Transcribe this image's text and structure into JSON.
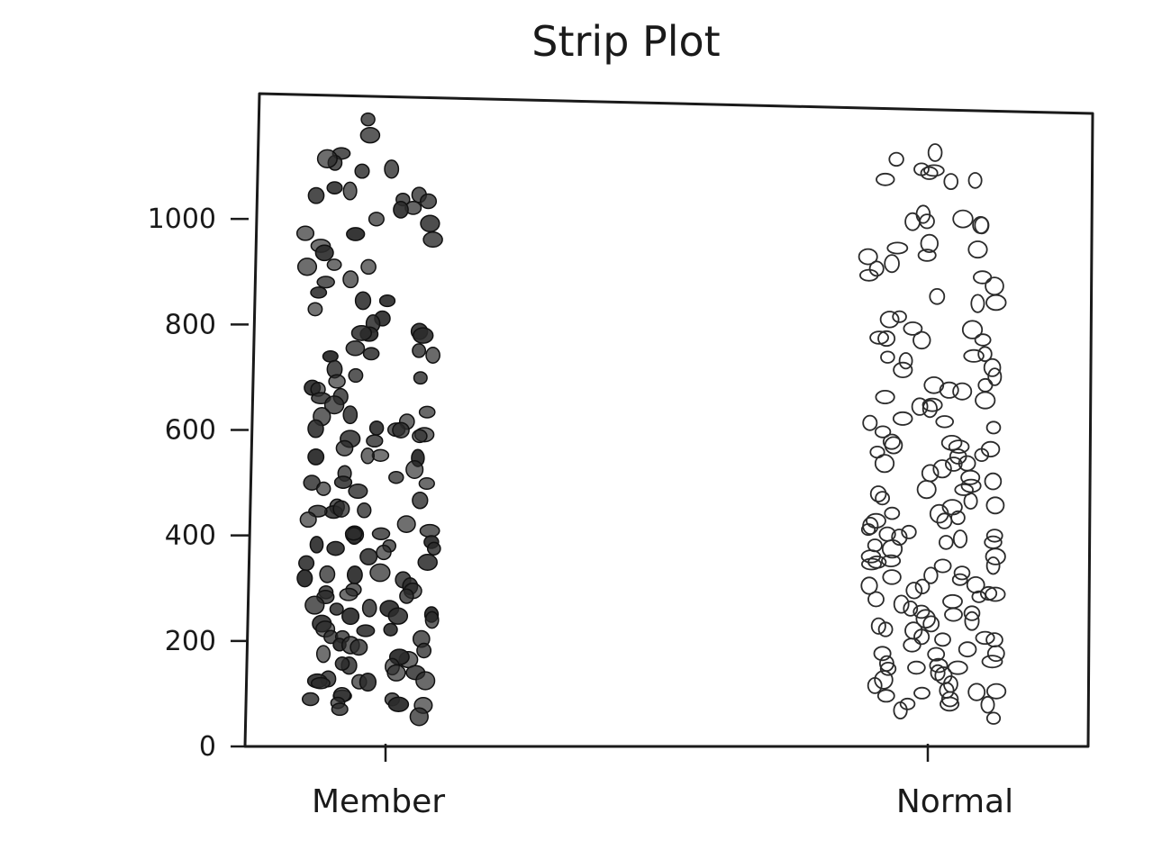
{
  "chart_data": {
    "type": "scatter",
    "title": "Strip Plot",
    "xlabel": "",
    "ylabel": "",
    "categories": [
      "Member",
      "Normal"
    ],
    "yticks": [
      "0",
      "200",
      "400",
      "600",
      "800",
      "1000"
    ],
    "ylim": [
      0,
      1200
    ],
    "grid": false,
    "legend": "none",
    "series": [
      {
        "category": "Member",
        "style": "filled",
        "color": "#2b2b2b",
        "values": [
          1190,
          1150,
          1130,
          1110,
          1105,
          1100,
          1090,
          1060,
          1050,
          1045,
          1040,
          1035,
          1030,
          1020,
          1010,
          1000,
          990,
          975,
          970,
          960,
          955,
          940,
          920,
          910,
          900,
          880,
          870,
          860,
          850,
          840,
          820,
          810,
          800,
          790,
          785,
          780,
          775,
          760,
          755,
          745,
          740,
          735,
          720,
          710,
          700,
          690,
          685,
          675,
          665,
          660,
          650,
          640,
          630,
          625,
          620,
          610,
          605,
          600,
          595,
          590,
          585,
          580,
          570,
          560,
          555,
          550,
          545,
          540,
          530,
          520,
          510,
          500,
          495,
          490,
          485,
          480,
          470,
          460,
          455,
          450,
          445,
          440,
          430,
          420,
          415,
          410,
          405,
          400,
          395,
          390,
          380,
          375,
          370,
          365,
          360,
          350,
          345,
          340,
          335,
          330,
          320,
          315,
          310,
          305,
          300,
          295,
          290,
          285,
          280,
          275,
          270,
          265,
          260,
          255,
          250,
          245,
          240,
          235,
          230,
          225,
          220,
          215,
          210,
          205,
          200,
          195,
          190,
          185,
          180,
          175,
          170,
          165,
          160,
          155,
          150,
          145,
          140,
          135,
          130,
          125,
          120,
          115,
          110,
          105,
          100,
          95,
          90,
          85,
          80,
          75,
          70,
          60
        ]
      },
      {
        "category": "Normal",
        "style": "hollow",
        "color": "#2b2b2b",
        "values": [
          1120,
          1110,
          1100,
          1095,
          1090,
          1080,
          1075,
          1070,
          1000,
          1000,
          995,
          990,
          990,
          985,
          960,
          950,
          945,
          940,
          930,
          925,
          900,
          890,
          880,
          870,
          860,
          840,
          830,
          820,
          815,
          800,
          795,
          780,
          775,
          770,
          760,
          750,
          740,
          735,
          725,
          720,
          710,
          700,
          690,
          680,
          670,
          665,
          660,
          650,
          645,
          640,
          630,
          620,
          615,
          610,
          600,
          590,
          585,
          580,
          575,
          570,
          560,
          555,
          550,
          545,
          540,
          530,
          525,
          520,
          510,
          505,
          500,
          495,
          490,
          485,
          480,
          470,
          465,
          460,
          455,
          450,
          445,
          440,
          430,
          425,
          420,
          415,
          410,
          405,
          400,
          395,
          390,
          385,
          380,
          375,
          370,
          365,
          360,
          355,
          350,
          345,
          340,
          335,
          330,
          325,
          320,
          315,
          310,
          305,
          300,
          295,
          290,
          285,
          280,
          275,
          270,
          265,
          260,
          255,
          250,
          245,
          240,
          235,
          230,
          225,
          220,
          215,
          210,
          205,
          200,
          195,
          190,
          185,
          180,
          175,
          170,
          165,
          160,
          155,
          150,
          145,
          140,
          135,
          130,
          125,
          120,
          115,
          110,
          105,
          100,
          95,
          90,
          85,
          80,
          75,
          70,
          60,
          50
        ]
      }
    ]
  }
}
